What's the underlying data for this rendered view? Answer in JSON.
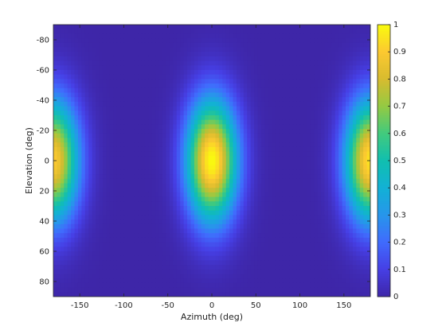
{
  "chart_data": {
    "type": "heatmap",
    "title": "",
    "xlabel": "Azimuth (deg)",
    "ylabel": "Elevation (deg)",
    "xlim": [
      -180,
      180
    ],
    "ylim": [
      -90,
      90
    ],
    "y_direction": "top-to-bottom increasing",
    "x_ticks": [
      -150,
      -100,
      -50,
      0,
      50,
      100,
      150
    ],
    "x_tick_labels": [
      "-150",
      "-100",
      "-50",
      "0",
      "50",
      "100",
      "150"
    ],
    "y_ticks": [
      -80,
      -60,
      -40,
      -20,
      0,
      20,
      40,
      60,
      80
    ],
    "y_tick_labels": [
      "-80",
      "-60",
      "-40",
      "-20",
      "0",
      "20",
      "40",
      "60",
      "80"
    ],
    "colorbar": {
      "range": [
        0,
        1
      ],
      "ticks": [
        0,
        0.1,
        0.2,
        0.3,
        0.4,
        0.5,
        0.6,
        0.7,
        0.8,
        0.9,
        1
      ],
      "tick_labels": [
        "0",
        "0.1",
        "0.2",
        "0.3",
        "0.4",
        "0.5",
        "0.6",
        "0.7",
        "0.8",
        "0.9",
        "1"
      ],
      "colormap": "parula",
      "placement": "right"
    },
    "lobes": [
      {
        "azimuth_center": 0,
        "elevation_center": 0,
        "peak": 1.0
      },
      {
        "azimuth_center": 180,
        "elevation_center": 0,
        "peak": 0.95
      },
      {
        "azimuth_center": -180,
        "elevation_center": 0,
        "peak": 0.9
      }
    ],
    "lobe_spread": {
      "azimuth_deg": 20,
      "elevation_deg": 28
    },
    "background_value": 0.0,
    "grid": false
  },
  "colors": {
    "background": "#ffffff",
    "axis": "#262626"
  }
}
